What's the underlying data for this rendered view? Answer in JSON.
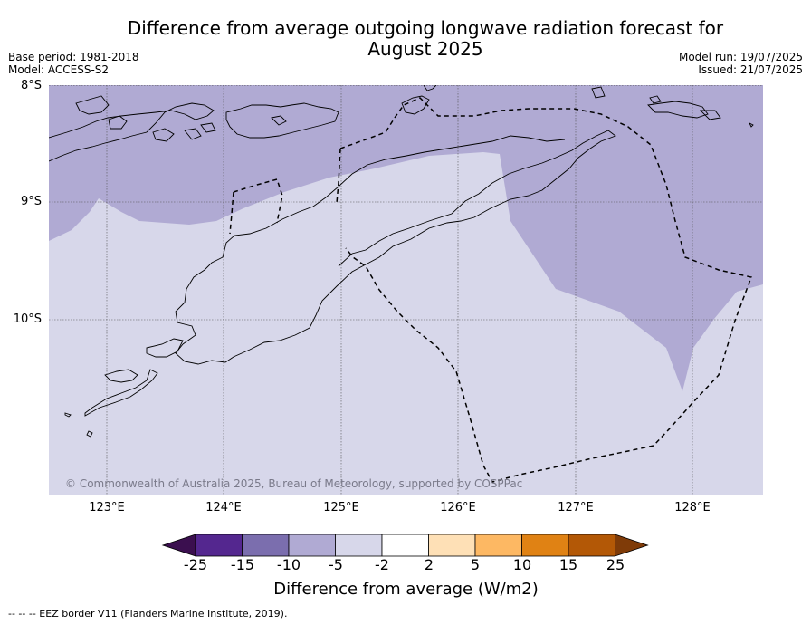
{
  "title_line1": "Difference from average outgoing longwave radiation forecast for",
  "title_line2": "August 2025",
  "base_period": "Base period: 1981-2018",
  "model": "Model: ACCESS-S2",
  "model_run": "Model run: 19/07/2025",
  "issued": "Issued: 21/07/2025",
  "map": {
    "lat_labels": [
      "8°S",
      "9°S",
      "10°S"
    ],
    "lon_labels": [
      "123°E",
      "124°E",
      "125°E",
      "126°E",
      "127°E",
      "128°E"
    ],
    "lon_range": [
      122.5,
      128.6
    ],
    "lat_range": [
      -8.0,
      -11.5
    ],
    "copyright": "© Commonwealth of Australia 2025, Bureau of Meteorology, supported by COSPPac",
    "region_colors": {
      "band_minus10_to_minus5": "#b0aad3",
      "band_minus5_to_minus2": "#d7d7ea"
    }
  },
  "colorbar": {
    "tick_labels": [
      "-25",
      "-15",
      "-10",
      "-5",
      "-2",
      "2",
      "5",
      "10",
      "15",
      "25"
    ],
    "colors": [
      "#3b0f4f",
      "#54278f",
      "#7b6eae",
      "#b0aad3",
      "#d7d7ea",
      "#ffffff",
      "#fee0b6",
      "#fdb863",
      "#e08214",
      "#b35806",
      "#7f3b08"
    ],
    "label": "Difference from average (W/m2)"
  },
  "eez_note": "--  --  -- EEZ border V11 (Flanders Marine Institute, 2019)."
}
